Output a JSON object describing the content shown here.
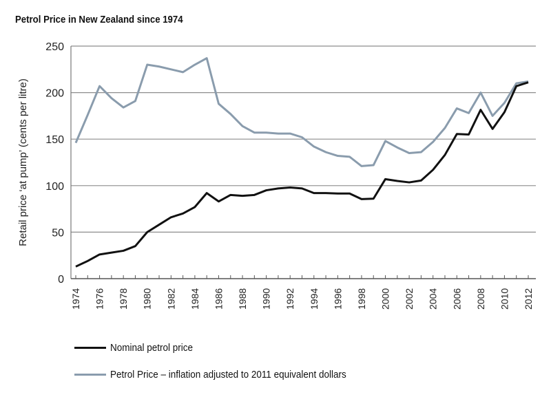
{
  "chart_data": {
    "type": "line",
    "title": "Petrol Price in New Zealand since 1974",
    "xlabel": "",
    "ylabel": "Retail price ‘at pump’ (cents per litre)",
    "ylim": [
      0,
      250
    ],
    "yticks": [
      0,
      50,
      100,
      150,
      200,
      250
    ],
    "grid": true,
    "x": [
      1974,
      1975,
      1976,
      1977,
      1978,
      1979,
      1980,
      1981,
      1982,
      1983,
      1984,
      1985,
      1986,
      1987,
      1988,
      1989,
      1990,
      1991,
      1992,
      1993,
      1994,
      1995,
      1996,
      1997,
      1998,
      1999,
      2000,
      2001,
      2002,
      2003,
      2004,
      2005,
      2006,
      2007,
      2008,
      2009,
      2010,
      2011,
      2012
    ],
    "xticks": [
      "1974",
      "1976",
      "1978",
      "1980",
      "1982",
      "1984",
      "1986",
      "1988",
      "1990",
      "1992",
      "1994",
      "1996",
      "1998",
      "2000",
      "2002",
      "2004",
      "2006",
      "2008",
      "2010",
      "2012"
    ],
    "legend_position": "bottom",
    "series": [
      {
        "name": "Nominal petrol price",
        "color": "#111111",
        "values": [
          13,
          19,
          26,
          28,
          30,
          35,
          50,
          58,
          66,
          70,
          77,
          92,
          83,
          90,
          89,
          90,
          95,
          97,
          98,
          97,
          92,
          92,
          91.5,
          91.5,
          85.5,
          86,
          107,
          105,
          103.5,
          105.5,
          117,
          133,
          155.5,
          155,
          181.5,
          161,
          179,
          207,
          211
        ]
      },
      {
        "name": "Petrol Price – inflation adjusted to 2011 equivalent dollars",
        "color": "#8a9cad",
        "values": [
          146,
          176,
          207,
          194,
          184,
          191,
          230,
          228,
          225,
          222,
          230,
          237,
          188,
          177,
          164,
          157,
          157,
          156,
          156,
          152,
          142,
          136,
          132,
          131,
          121,
          122,
          148,
          141,
          135,
          136,
          147,
          162,
          183,
          178,
          200,
          175,
          189,
          210,
          212
        ]
      }
    ]
  }
}
